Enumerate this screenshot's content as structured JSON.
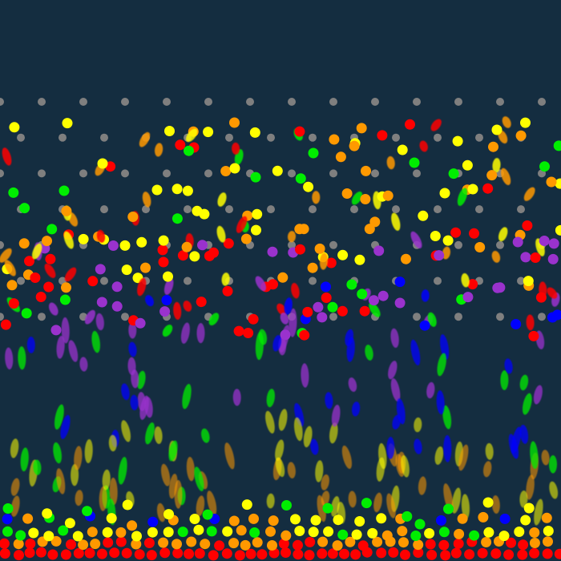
{
  "scene": {
    "background": "#142d40",
    "peg_color": "#7f7f7f",
    "ball_palette": {
      "red": "#ff0000",
      "orange": "#ff9900",
      "yellow": "#ffff00",
      "green": "#00ee00",
      "blue": "#0000ff",
      "purple": "#9a32cd"
    },
    "peg_rows": 7,
    "motion_blur": true
  }
}
